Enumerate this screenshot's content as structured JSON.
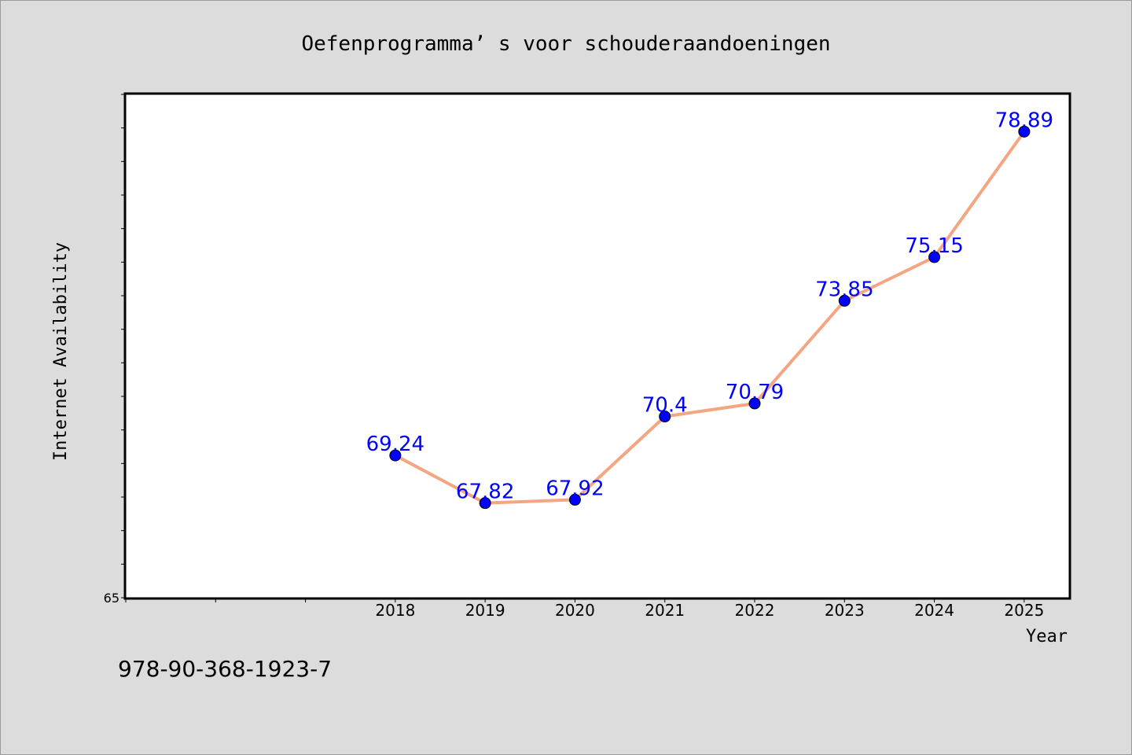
{
  "chart_data": {
    "type": "line",
    "title": "Oefenprogramma’ s voor schouderaandoeningen",
    "xlabel": "Year",
    "ylabel": "Internet Availability",
    "x": [
      "2018",
      "2019",
      "2020",
      "2021",
      "2022",
      "2023",
      "2024",
      "2025"
    ],
    "values": [
      69.24,
      67.82,
      67.92,
      70.4,
      70.79,
      73.85,
      75.15,
      78.89
    ],
    "data_labels": [
      "69.24",
      "67.82",
      "67.92",
      "70.4",
      "70.79",
      "73.85",
      "75.15",
      "78.89"
    ],
    "y_tick_labels": [
      "65"
    ],
    "ylim": [
      65,
      80
    ],
    "xlim": [
      2015,
      2025.5
    ],
    "grid": false,
    "line_color": "#f4a582",
    "marker_color": "#0000ff",
    "label_color": "#0000ff"
  },
  "caption": "978-90-368-1923-7"
}
